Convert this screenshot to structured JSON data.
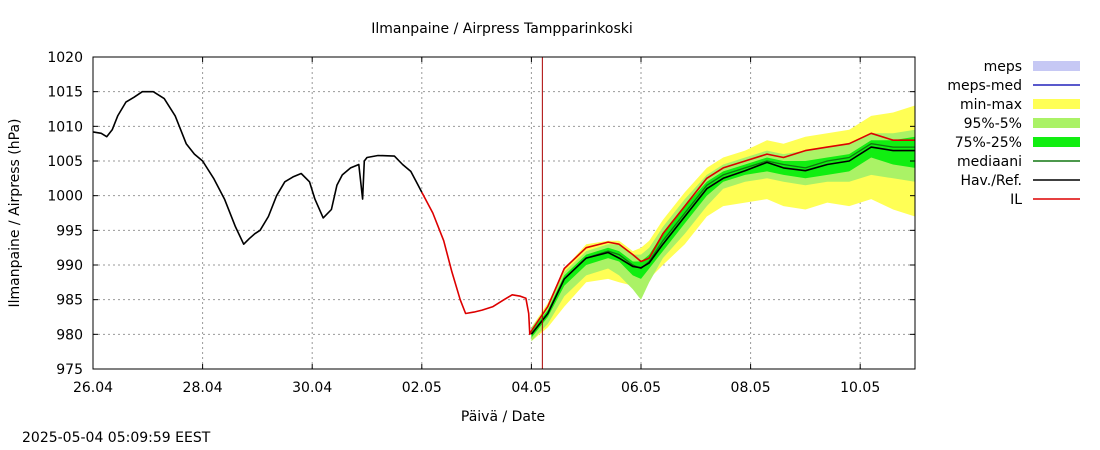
{
  "chart_data": {
    "type": "line",
    "title": "Ilmanpaine / Airpress Tampparinkoski",
    "xlabel": "Päivä / Date",
    "ylabel": "Ilmanpaine / Airpress (hPa)",
    "ylim": [
      975,
      1020
    ],
    "yticks": [
      975,
      980,
      985,
      990,
      995,
      1000,
      1005,
      1010,
      1015,
      1020
    ],
    "xlim": [
      0,
      15
    ],
    "xticks": [
      {
        "x": 0,
        "label": "26.04"
      },
      {
        "x": 2,
        "label": "28.04"
      },
      {
        "x": 4,
        "label": "30.04"
      },
      {
        "x": 6,
        "label": "02.05"
      },
      {
        "x": 8,
        "label": "04.05"
      },
      {
        "x": 10,
        "label": "06.05"
      },
      {
        "x": 12,
        "label": "08.05"
      },
      {
        "x": 14,
        "label": "10.05"
      }
    ],
    "grid": true,
    "legend_position": "right",
    "forecast_time": 8.2,
    "legend": [
      {
        "label": "meps",
        "color": "#c6c8f4",
        "kind": "box"
      },
      {
        "label": "meps-med",
        "color": "#2222bb",
        "kind": "line"
      },
      {
        "label": "min-max",
        "color": "#ffff55",
        "kind": "box"
      },
      {
        "label": "95%-5%",
        "color": "#aaf266",
        "kind": "box"
      },
      {
        "label": "75%-25%",
        "color": "#11ee11",
        "kind": "box"
      },
      {
        "label": "mediaani",
        "color": "#117711",
        "kind": "line"
      },
      {
        "label": "Hav./Ref.",
        "color": "#000000",
        "kind": "line"
      },
      {
        "label": "IL",
        "color": "#dd0000",
        "kind": "line"
      }
    ],
    "observed": {
      "name": "Hav./Ref.",
      "x": [
        0.0,
        0.15,
        0.25,
        0.35,
        0.45,
        0.6,
        0.75,
        0.9,
        1.1,
        1.3,
        1.5,
        1.7,
        1.85,
        2.0,
        2.2,
        2.4,
        2.6,
        2.75,
        2.85,
        2.95,
        3.05,
        3.2,
        3.35,
        3.5,
        3.65,
        3.8,
        3.95,
        4.05,
        4.2,
        4.35,
        4.45,
        4.55,
        4.7,
        4.85,
        4.92,
        4.95,
        5.0,
        5.2,
        5.5,
        5.65,
        5.8,
        5.9,
        6.0
      ],
      "y": [
        1009.2,
        1009.0,
        1008.5,
        1009.5,
        1011.5,
        1013.5,
        1014.2,
        1015.0,
        1015.0,
        1014.0,
        1011.5,
        1007.5,
        1006.0,
        1005.0,
        1002.5,
        999.5,
        995.5,
        993.0,
        993.8,
        994.5,
        995.0,
        997.0,
        1000.0,
        1002.0,
        1002.7,
        1003.2,
        1002.0,
        999.5,
        996.8,
        998.0,
        1001.5,
        1003.0,
        1004.0,
        1004.5,
        999.5,
        1005.0,
        1005.5,
        1005.8,
        1005.7,
        1004.5,
        1003.5,
        1002.0,
        1000.5
      ]
    },
    "il": {
      "name": "IL",
      "x": [
        6.0,
        6.2,
        6.4,
        6.55,
        6.7,
        6.8,
        6.95,
        7.1,
        7.3,
        7.5,
        7.65,
        7.8,
        7.9,
        7.95,
        7.97,
        8.0,
        8.3,
        8.6,
        9.0,
        9.4,
        9.6,
        9.85,
        10.0,
        10.15,
        10.4,
        10.8,
        11.2,
        11.5,
        11.9,
        12.3,
        12.6,
        13.0,
        13.4,
        13.8,
        14.2,
        14.6,
        15.0
      ],
      "y": [
        1000.5,
        997.5,
        993.5,
        989.0,
        985.0,
        983.0,
        983.2,
        983.5,
        984.0,
        985.0,
        985.7,
        985.5,
        985.2,
        983.0,
        980.0,
        980.5,
        984.0,
        989.5,
        992.5,
        993.3,
        993.0,
        991.5,
        990.5,
        991.0,
        994.5,
        998.5,
        1002.5,
        1004.0,
        1005.0,
        1006.0,
        1005.5,
        1006.5,
        1007.0,
        1007.5,
        1009.0,
        1008.0,
        1008.0
      ]
    },
    "forecast": {
      "x": [
        8.0,
        8.3,
        8.6,
        9.0,
        9.4,
        9.6,
        9.85,
        10.0,
        10.15,
        10.4,
        10.8,
        11.2,
        11.5,
        11.9,
        12.3,
        12.6,
        13.0,
        13.4,
        13.8,
        14.2,
        14.6,
        15.0
      ],
      "median": [
        980.0,
        983.0,
        988.0,
        991.0,
        992.0,
        991.5,
        990.0,
        989.5,
        990.5,
        993.5,
        997.5,
        1001.5,
        1003.0,
        1004.0,
        1005.0,
        1004.5,
        1004.0,
        1005.0,
        1005.5,
        1007.5,
        1007.0,
        1007.0
      ],
      "obs_forecast": [
        980.0,
        983.0,
        988.0,
        991.0,
        991.8,
        991.0,
        989.8,
        989.6,
        990.3,
        993.0,
        997.0,
        1001.0,
        1002.5,
        1003.6,
        1004.8,
        1004.0,
        1003.6,
        1004.5,
        1005.0,
        1007.0,
        1006.5,
        1006.5
      ],
      "p25": [
        979.5,
        982.5,
        987.0,
        990.0,
        991.0,
        990.5,
        988.5,
        988.0,
        989.5,
        992.0,
        996.0,
        1000.0,
        1002.0,
        1003.0,
        1003.5,
        1003.0,
        1002.5,
        1003.0,
        1003.5,
        1005.5,
        1004.5,
        1004.0
      ],
      "p75": [
        980.5,
        983.5,
        988.5,
        991.5,
        992.5,
        992.0,
        990.5,
        990.5,
        991.5,
        994.5,
        998.5,
        1002.0,
        1003.5,
        1004.5,
        1005.5,
        1005.0,
        1005.0,
        1005.5,
        1006.0,
        1008.0,
        1008.0,
        1008.5
      ],
      "p5": [
        979.0,
        981.5,
        985.5,
        988.5,
        989.5,
        988.5,
        986.5,
        985.0,
        987.5,
        991.0,
        994.5,
        998.5,
        1001.0,
        1002.0,
        1002.5,
        1002.0,
        1001.5,
        1002.0,
        1002.0,
        1003.0,
        1002.5,
        1002.0
      ],
      "p95": [
        981.0,
        984.0,
        989.0,
        992.0,
        993.0,
        993.0,
        991.5,
        991.5,
        992.5,
        995.5,
        999.5,
        1003.0,
        1004.5,
        1005.5,
        1006.5,
        1006.0,
        1006.5,
        1007.0,
        1007.5,
        1009.0,
        1009.0,
        1009.5
      ],
      "min": [
        979.0,
        981.0,
        984.0,
        987.5,
        988.0,
        987.5,
        987.0,
        986.0,
        988.0,
        990.0,
        993.0,
        997.0,
        998.5,
        999.0,
        999.5,
        998.5,
        998.0,
        999.0,
        998.5,
        999.5,
        998.0,
        997.0
      ],
      "max": [
        981.0,
        984.5,
        989.5,
        993.0,
        993.5,
        993.5,
        992.0,
        992.5,
        993.5,
        996.5,
        1000.5,
        1004.0,
        1005.5,
        1006.5,
        1008.0,
        1007.5,
        1008.5,
        1009.0,
        1009.5,
        1011.5,
        1012.0,
        1013.0
      ]
    }
  },
  "footer": {
    "timestamp": "2025-05-04  05:09:59 EEST"
  }
}
